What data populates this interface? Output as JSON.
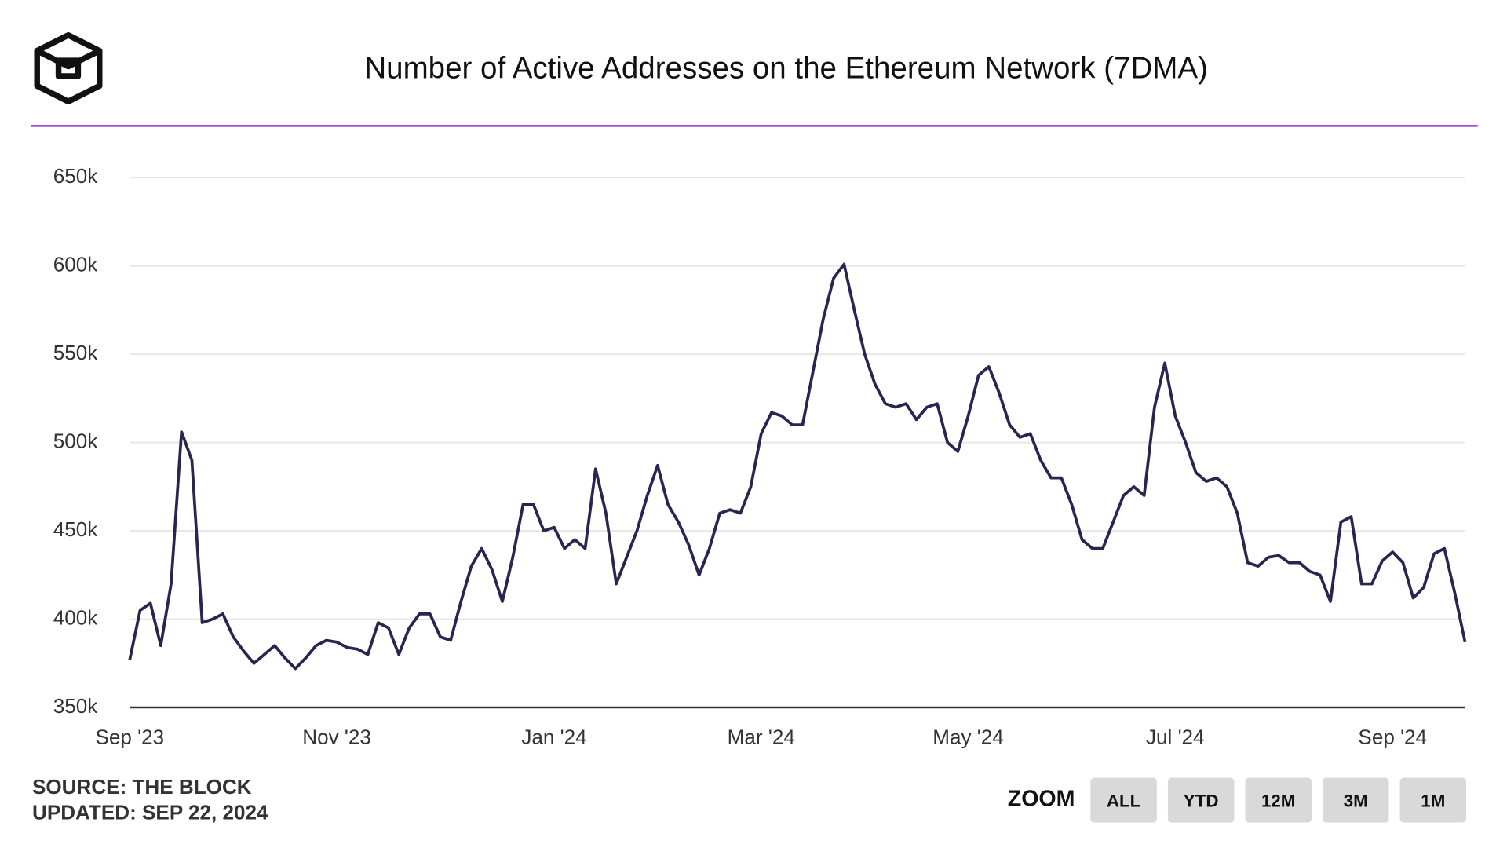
{
  "chart_data": {
    "type": "line",
    "title": "Number of Active Addresses on the Ethereum Network (7DMA)",
    "source": "SOURCE: THE BLOCK",
    "updated": "UPDATED: SEP 22, 2024",
    "zoom_label": "ZOOM",
    "buttons": [
      "ALL",
      "YTD",
      "12M",
      "3M",
      "1M"
    ],
    "categories": [
      "Sep '23",
      null,
      null,
      null,
      null,
      null,
      null,
      null,
      null,
      null,
      null,
      null,
      null,
      null,
      null,
      null,
      null,
      null,
      null,
      null,
      "Nov '23",
      null,
      null,
      null,
      null,
      null,
      null,
      null,
      null,
      null,
      null,
      null,
      null,
      null,
      null,
      null,
      null,
      null,
      null,
      null,
      null,
      "Jan '24",
      null,
      null,
      null,
      null,
      null,
      null,
      null,
      null,
      null,
      null,
      null,
      null,
      null,
      null,
      null,
      null,
      null,
      null,
      null,
      "Mar '24",
      null,
      null,
      null,
      null,
      null,
      null,
      null,
      null,
      null,
      null,
      null,
      null,
      null,
      null,
      null,
      null,
      null,
      null,
      null,
      "May '24",
      null,
      null,
      null,
      null,
      null,
      null,
      null,
      null,
      null,
      null,
      null,
      null,
      null,
      null,
      null,
      null,
      null,
      null,
      null,
      "Jul '24",
      null,
      null,
      null,
      null,
      null,
      null,
      null,
      null,
      null,
      null,
      null,
      null,
      null,
      null,
      null,
      null,
      null,
      null,
      null,
      null,
      "Sep '24",
      null,
      null,
      null,
      null,
      null,
      null,
      null
    ],
    "series": [
      {
        "name": "Active Addresses",
        "color": "#2a2550",
        "values": [
          377000,
          405000,
          409000,
          385000,
          420000,
          506000,
          490000,
          398000,
          400000,
          403000,
          390000,
          382000,
          375000,
          380000,
          385000,
          378000,
          372000,
          378000,
          385000,
          388000,
          387000,
          384000,
          383000,
          380000,
          398000,
          395000,
          380000,
          395000,
          403000,
          403000,
          390000,
          388000,
          410000,
          430000,
          440000,
          428000,
          410000,
          435000,
          465000,
          465000,
          450000,
          452000,
          440000,
          445000,
          440000,
          485000,
          460000,
          420000,
          435000,
          450000,
          470000,
          487000,
          465000,
          455000,
          442000,
          425000,
          440000,
          460000,
          462000,
          460000,
          475000,
          505000,
          517000,
          515000,
          510000,
          510000,
          540000,
          570000,
          593000,
          601000,
          575000,
          550000,
          533000,
          522000,
          520000,
          522000,
          513000,
          520000,
          522000,
          500000,
          495000,
          515000,
          538000,
          543000,
          528000,
          510000,
          503000,
          505000,
          490000,
          480000,
          480000,
          465000,
          445000,
          440000,
          440000,
          455000,
          470000,
          475000,
          470000,
          520000,
          545000,
          515000,
          500000,
          483000,
          478000,
          480000,
          475000,
          460000,
          432000,
          430000,
          435000,
          436000,
          432000,
          432000,
          427000,
          425000,
          410000,
          455000,
          458000,
          420000,
          420000,
          433000,
          438000,
          432000,
          412000,
          418000,
          437000,
          440000,
          415000,
          387000
        ]
      }
    ],
    "ylim": [
      350000,
      650000
    ],
    "yticks": [
      {
        "value": 350000,
        "label": "350k"
      },
      {
        "value": 400000,
        "label": "400k"
      },
      {
        "value": 450000,
        "label": "450k"
      },
      {
        "value": 500000,
        "label": "500k"
      },
      {
        "value": 550000,
        "label": "550k"
      },
      {
        "value": 600000,
        "label": "600k"
      },
      {
        "value": 650000,
        "label": "650k"
      }
    ],
    "grid": true
  }
}
